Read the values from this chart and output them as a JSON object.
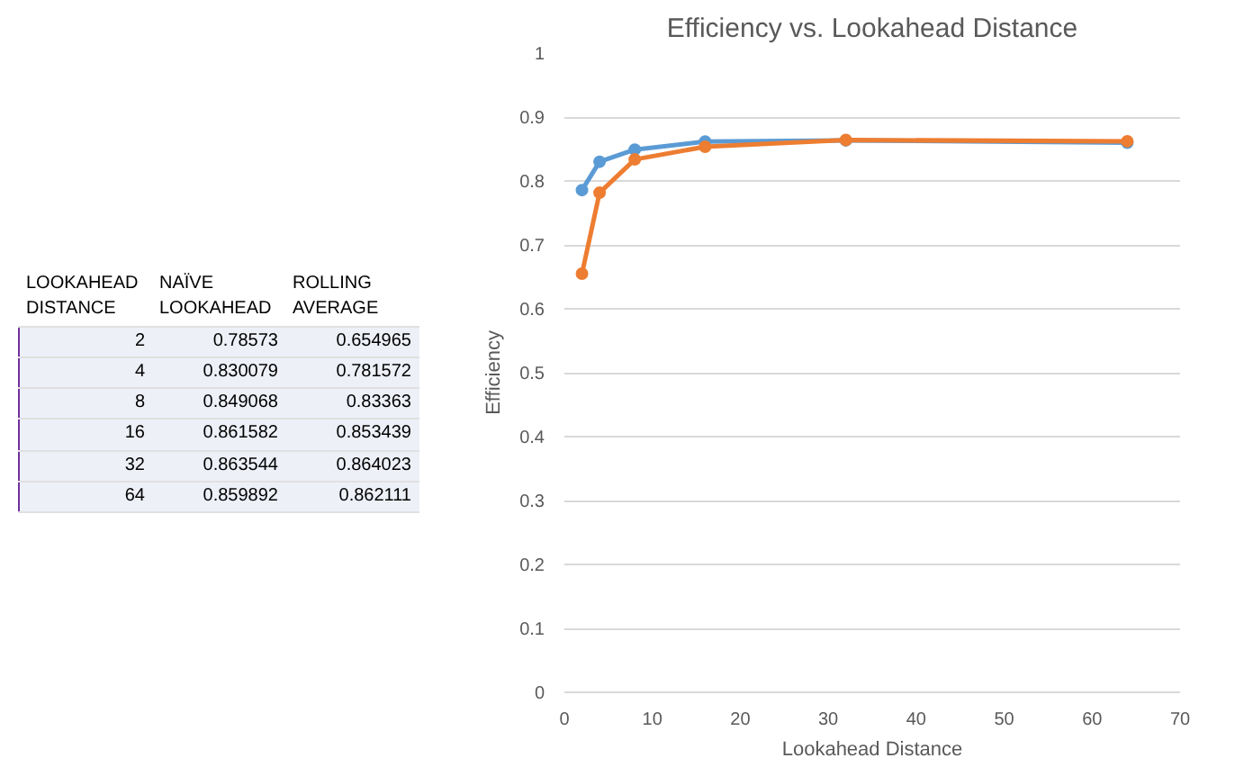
{
  "chart_data": [
    {
      "type": "other",
      "annotations": [
        "LOOKAHEAD DISTANCE",
        "NAÏVE LOOKAHEAD",
        "ROLLING AVERAGE",
        "2",
        "0.78573",
        "0.654965",
        "4",
        "0.830079",
        "0.781572",
        "8",
        "0.849068",
        "0.83363",
        "16",
        "0.861582",
        "0.853439",
        "32",
        "0.863544",
        "0.864023",
        "64",
        "0.859892",
        "0.862111"
      ]
    },
    {
      "type": "line",
      "title": "Efficiency vs. Lookahead Distance",
      "xlabel": "Lookahead Distance",
      "ylabel": "Efficiency",
      "x": [
        2,
        4,
        8,
        16,
        32,
        64
      ],
      "series": [
        {
          "color": "#5b9bd5",
          "values": [
            0.78573,
            0.830079,
            0.849068,
            0.861582,
            0.863544,
            0.859892
          ]
        },
        {
          "color": "#ed7d31",
          "values": [
            0.654965,
            0.781572,
            0.83363,
            0.853439,
            0.864023,
            0.862111
          ]
        }
      ],
      "xlim": [
        0,
        70
      ],
      "xticks": [
        0,
        10,
        20,
        30,
        40,
        50,
        60,
        70
      ],
      "ylim": [
        0,
        1
      ],
      "yticks": [
        0,
        0.1,
        0.2,
        0.3,
        0.4,
        0.5,
        0.6,
        0.7,
        0.8,
        0.9,
        1
      ],
      "grid": "y",
      "marker": "circle",
      "line_style": "solid"
    }
  ]
}
